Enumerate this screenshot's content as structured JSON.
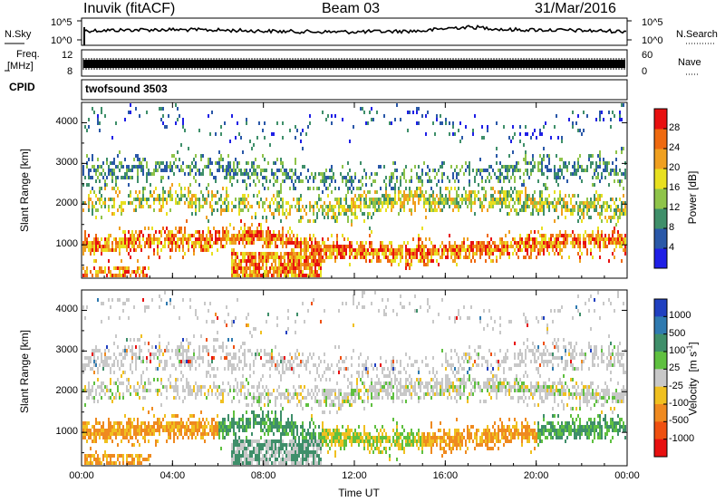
{
  "header": {
    "station": "Inuvik (fitACF)",
    "beam": "Beam 03",
    "date": "31/Mar/2016"
  },
  "labels": {
    "nsky": "N.Sky",
    "nsearch": "N.Search",
    "freq": "Freq.",
    "mhz": "[MHz]",
    "nave": "Nave",
    "cpid": "CPID",
    "cpid_value": "twofsound 3503",
    "x_axis": "Time UT",
    "y_axis_top": "Slant Range [km]",
    "y_axis_bottom": "Slant Range [km]"
  },
  "colors": {
    "power": [
      "#1f1fe6",
      "#2a58a8",
      "#3f8f6a",
      "#8fc44a",
      "#e8e020",
      "#f0a020",
      "#ef6a10",
      "#e81010"
    ],
    "velocity": [
      "#2040c0",
      "#2f7ab0",
      "#3f8f6a",
      "#5fc040",
      "#c8c8c8",
      "#f0c020",
      "#ef8a20",
      "#ef5010",
      "#e81010"
    ],
    "gray": "#c8c8c8"
  },
  "chart_data": [
    {
      "type": "line",
      "name": "noise-panel",
      "left_ticks": [
        "10^5",
        "10^0"
      ],
      "right_ticks": [
        "10^5",
        "10^0"
      ],
      "series": [
        {
          "name": "N.Sky"
        },
        {
          "name": "N.Search"
        }
      ]
    },
    {
      "type": "line",
      "name": "freq-nave-panel",
      "left_ticks": [
        "12",
        "8"
      ],
      "right_ticks": [
        "60",
        "0"
      ],
      "series": [
        {
          "name": "Freq."
        },
        {
          "name": "Nave"
        }
      ]
    },
    {
      "type": "heatmap",
      "name": "power",
      "xlabel": "Time UT",
      "ylabel": "Slant Range [km]",
      "x_ticks": [
        "00:00",
        "04:00",
        "08:00",
        "12:00",
        "16:00",
        "20:00",
        "00:00"
      ],
      "y_ticks": [
        1000,
        2000,
        3000,
        4000
      ],
      "ylim": [
        180,
        4500
      ],
      "colorbar_label": "Power [dB]",
      "colorbar_ticks": [
        "28",
        "24",
        "20",
        "16",
        "12",
        "8",
        "4"
      ],
      "colorbar_range": [
        0,
        32
      ]
    },
    {
      "type": "heatmap",
      "name": "velocity",
      "xlabel": "Time UT",
      "ylabel": "Slant Range [km]",
      "x_ticks": [
        "00:00",
        "04:00",
        "08:00",
        "12:00",
        "16:00",
        "20:00",
        "00:00"
      ],
      "y_ticks": [
        1000,
        2000,
        3000,
        4000
      ],
      "ylim": [
        180,
        4500
      ],
      "colorbar_label": "Velocity",
      "colorbar_unit": "[m s",
      "colorbar_unit_exp": "-1",
      "colorbar_unit_end": "]",
      "colorbar_ticks": [
        "1000",
        "500",
        "100",
        "25",
        "-25",
        "-100",
        "-500",
        "-1000"
      ]
    }
  ]
}
